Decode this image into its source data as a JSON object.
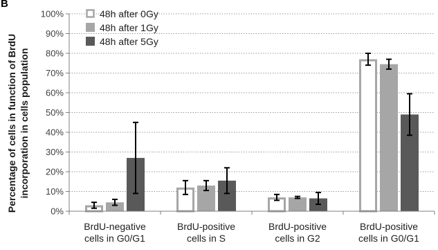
{
  "panel_label": "B",
  "chart_data": {
    "type": "bar",
    "ylabel_lines": [
      "Percentage of cells in function of BrdU",
      "incorporation in cells population"
    ],
    "xlabel": "",
    "ylim": [
      0,
      100
    ],
    "y_ticks": [
      {
        "value": 0,
        "label": "0%"
      },
      {
        "value": 10,
        "label": "10%"
      },
      {
        "value": 20,
        "label": "20%"
      },
      {
        "value": 30,
        "label": "30%"
      },
      {
        "value": 40,
        "label": "40%"
      },
      {
        "value": 50,
        "label": "50%"
      },
      {
        "value": 60,
        "label": "60%"
      },
      {
        "value": 70,
        "label": "70%"
      },
      {
        "value": 80,
        "label": "80%"
      },
      {
        "value": 90,
        "label": "90%"
      },
      {
        "value": 100,
        "label": "100%"
      }
    ],
    "grid": "horizontal-dotted",
    "legend_position": "top-left",
    "categories": [
      {
        "lines": [
          "BrdU-negative",
          "cells in G0/G1"
        ]
      },
      {
        "lines": [
          "BrdU-positive",
          "cells in S"
        ]
      },
      {
        "lines": [
          "BrdU-positive",
          "cells in G2"
        ]
      },
      {
        "lines": [
          "BrdU-positive",
          "cells in G0/G1"
        ]
      }
    ],
    "series": [
      {
        "name": "48h after 0Gy",
        "style": "outline",
        "color": "#a6a6a6",
        "values": [
          3.0,
          12.0,
          7.0,
          77.0
        ],
        "errors": [
          1.5,
          3.5,
          1.5,
          3.0
        ]
      },
      {
        "name": "48h after 1Gy",
        "style": "filled",
        "color": "#a6a6a6",
        "values": [
          4.5,
          13.0,
          7.0,
          74.5
        ],
        "errors": [
          1.5,
          2.5,
          0.5,
          2.5
        ]
      },
      {
        "name": "48h after 5Gy",
        "style": "filled",
        "color": "#595959",
        "values": [
          27.0,
          15.5,
          6.5,
          49.0
        ],
        "errors": [
          18.0,
          6.5,
          3.0,
          10.5
        ]
      }
    ]
  }
}
